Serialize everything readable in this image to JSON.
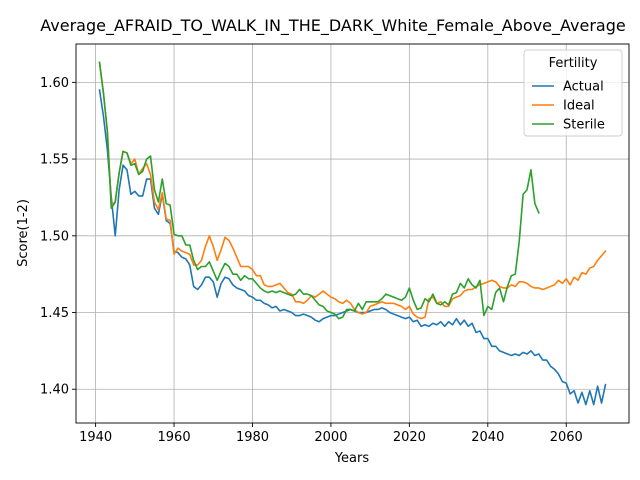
{
  "chart_data": {
    "type": "line",
    "title": "Average_AFRAID_TO_WALK_IN_THE_DARK_White_Female_Above_Average",
    "xlabel": "Years",
    "ylabel": "Score(1-2)",
    "xlim": [
      1935,
      2076
    ],
    "ylim": [
      1.378,
      1.625
    ],
    "xticks": [
      1940,
      1960,
      1980,
      2000,
      2020,
      2040,
      2060
    ],
    "yticks": [
      1.4,
      1.45,
      1.5,
      1.55,
      1.6
    ],
    "xtick_labels": [
      "1940",
      "1960",
      "1980",
      "2000",
      "2020",
      "2040",
      "2060"
    ],
    "ytick_labels": [
      "1.40",
      "1.45",
      "1.50",
      "1.55",
      "1.60"
    ],
    "grid": true,
    "legend": {
      "title": "Fertility",
      "placement": "top-right"
    },
    "series": [
      {
        "name": "Actual",
        "color": "#1f77b4",
        "x": [
          1941,
          1942,
          1943,
          1944,
          1945,
          1946,
          1947,
          1948,
          1949,
          1950,
          1951,
          1952,
          1953,
          1954,
          1955,
          1956,
          1957,
          1958,
          1959,
          1960,
          1961,
          1962,
          1963,
          1964,
          1965,
          1966,
          1967,
          1968,
          1969,
          1970,
          1971,
          1972,
          1973,
          1974,
          1975,
          1976,
          1977,
          1978,
          1979,
          1980,
          1981,
          1982,
          1983,
          1984,
          1985,
          1986,
          1987,
          1988,
          1989,
          1990,
          1991,
          1992,
          1993,
          1994,
          1995,
          1996,
          1997,
          1998,
          1999,
          2000,
          2001,
          2002,
          2003,
          2004,
          2005,
          2006,
          2007,
          2008,
          2009,
          2010,
          2011,
          2012,
          2013,
          2014,
          2015,
          2016,
          2017,
          2018,
          2019,
          2020,
          2021,
          2022,
          2023,
          2024,
          2025,
          2026,
          2027,
          2028,
          2029,
          2030,
          2031,
          2032,
          2033,
          2034,
          2035,
          2036,
          2037,
          2038,
          2039,
          2040,
          2041,
          2042,
          2043,
          2044,
          2045,
          2046,
          2047,
          2048,
          2049,
          2050,
          2051,
          2052,
          2053,
          2054,
          2055,
          2056,
          2057,
          2058,
          2059,
          2060,
          2061,
          2062,
          2063,
          2064,
          2065,
          2066,
          2067,
          2068,
          2069,
          2070
        ],
        "values": [
          1.595,
          1.578,
          1.556,
          1.525,
          1.5,
          1.53,
          1.546,
          1.543,
          1.527,
          1.529,
          1.526,
          1.526,
          1.537,
          1.537,
          1.518,
          1.514,
          1.527,
          1.51,
          1.508,
          1.49,
          1.489,
          1.486,
          1.485,
          1.481,
          1.467,
          1.465,
          1.468,
          1.473,
          1.473,
          1.47,
          1.46,
          1.469,
          1.473,
          1.472,
          1.468,
          1.466,
          1.465,
          1.464,
          1.461,
          1.46,
          1.458,
          1.458,
          1.456,
          1.455,
          1.453,
          1.454,
          1.451,
          1.452,
          1.451,
          1.45,
          1.448,
          1.448,
          1.449,
          1.448,
          1.447,
          1.445,
          1.444,
          1.446,
          1.447,
          1.448,
          1.448,
          1.449,
          1.45,
          1.451,
          1.452,
          1.451,
          1.45,
          1.45,
          1.45,
          1.451,
          1.452,
          1.452,
          1.453,
          1.452,
          1.45,
          1.449,
          1.448,
          1.447,
          1.446,
          1.447,
          1.444,
          1.445,
          1.441,
          1.442,
          1.441,
          1.443,
          1.442,
          1.444,
          1.441,
          1.444,
          1.442,
          1.446,
          1.442,
          1.445,
          1.441,
          1.443,
          1.437,
          1.438,
          1.433,
          1.433,
          1.428,
          1.428,
          1.425,
          1.424,
          1.423,
          1.422,
          1.423,
          1.422,
          1.424,
          1.423,
          1.425,
          1.422,
          1.423,
          1.419,
          1.419,
          1.415,
          1.413,
          1.41,
          1.405,
          1.404,
          1.397,
          1.399,
          1.391,
          1.398,
          1.39,
          1.399,
          1.39,
          1.402,
          1.391,
          1.403
        ]
      },
      {
        "name": "Ideal",
        "color": "#ff7f0e",
        "x": [
          1941,
          1942,
          1943,
          1944,
          1945,
          1946,
          1947,
          1948,
          1949,
          1950,
          1951,
          1952,
          1953,
          1954,
          1955,
          1956,
          1957,
          1958,
          1959,
          1960,
          1961,
          1962,
          1963,
          1964,
          1965,
          1966,
          1967,
          1968,
          1969,
          1970,
          1971,
          1972,
          1973,
          1974,
          1975,
          1976,
          1977,
          1978,
          1979,
          1980,
          1981,
          1982,
          1983,
          1984,
          1985,
          1986,
          1987,
          1988,
          1989,
          1990,
          1991,
          1992,
          1993,
          1994,
          1995,
          1996,
          1997,
          1998,
          1999,
          2000,
          2001,
          2002,
          2003,
          2004,
          2005,
          2006,
          2007,
          2008,
          2009,
          2010,
          2011,
          2012,
          2013,
          2014,
          2015,
          2016,
          2017,
          2018,
          2019,
          2020,
          2021,
          2022,
          2023,
          2024,
          2025,
          2026,
          2027,
          2028,
          2029,
          2030,
          2031,
          2032,
          2033,
          2034,
          2035,
          2036,
          2037,
          2038,
          2039,
          2040,
          2041,
          2042,
          2043,
          2044,
          2045,
          2046,
          2047,
          2048,
          2049,
          2050,
          2051,
          2052,
          2053,
          2054,
          2055,
          2056,
          2057,
          2058,
          2059,
          2060,
          2061,
          2062,
          2063,
          2064,
          2065,
          2066,
          2067,
          2068,
          2069,
          2070
        ],
        "values": [
          1.613,
          1.593,
          1.568,
          1.52,
          1.522,
          1.541,
          1.555,
          1.554,
          1.547,
          1.55,
          1.54,
          1.544,
          1.547,
          1.54,
          1.522,
          1.517,
          1.528,
          1.511,
          1.51,
          1.488,
          1.492,
          1.49,
          1.489,
          1.488,
          1.481,
          1.481,
          1.484,
          1.493,
          1.5,
          1.493,
          1.484,
          1.491,
          1.499,
          1.497,
          1.492,
          1.486,
          1.48,
          1.48,
          1.48,
          1.478,
          1.474,
          1.474,
          1.468,
          1.467,
          1.467,
          1.468,
          1.469,
          1.466,
          1.463,
          1.462,
          1.457,
          1.457,
          1.456,
          1.458,
          1.461,
          1.46,
          1.462,
          1.464,
          1.462,
          1.46,
          1.459,
          1.457,
          1.456,
          1.458,
          1.456,
          1.452,
          1.45,
          1.449,
          1.45,
          1.454,
          1.455,
          1.456,
          1.457,
          1.456,
          1.456,
          1.456,
          1.455,
          1.454,
          1.452,
          1.454,
          1.449,
          1.447,
          1.446,
          1.447,
          1.459,
          1.46,
          1.456,
          1.457,
          1.454,
          1.454,
          1.459,
          1.46,
          1.461,
          1.464,
          1.465,
          1.465,
          1.467,
          1.468,
          1.469,
          1.47,
          1.471,
          1.47,
          1.467,
          1.466,
          1.466,
          1.468,
          1.467,
          1.47,
          1.47,
          1.469,
          1.467,
          1.466,
          1.466,
          1.465,
          1.466,
          1.467,
          1.468,
          1.471,
          1.469,
          1.472,
          1.468,
          1.473,
          1.471,
          1.476,
          1.475,
          1.479,
          1.48,
          1.484,
          1.487,
          1.49
        ]
      },
      {
        "name": "Sterile",
        "color": "#2ca02c",
        "x": [
          1941,
          1942,
          1943,
          1944,
          1945,
          1946,
          1947,
          1948,
          1949,
          1950,
          1951,
          1952,
          1953,
          1954,
          1955,
          1956,
          1957,
          1958,
          1959,
          1960,
          1961,
          1962,
          1963,
          1964,
          1965,
          1966,
          1967,
          1968,
          1969,
          1970,
          1971,
          1972,
          1973,
          1974,
          1975,
          1976,
          1977,
          1978,
          1979,
          1980,
          1981,
          1982,
          1983,
          1984,
          1985,
          1986,
          1987,
          1988,
          1989,
          1990,
          1991,
          1992,
          1993,
          1994,
          1995,
          1996,
          1997,
          1998,
          1999,
          2000,
          2001,
          2002,
          2003,
          2004,
          2005,
          2006,
          2007,
          2008,
          2009,
          2010,
          2011,
          2012,
          2013,
          2014,
          2015,
          2016,
          2017,
          2018,
          2019,
          2020,
          2021,
          2022,
          2023,
          2024,
          2025,
          2026,
          2027,
          2028,
          2029,
          2030,
          2031,
          2032,
          2033,
          2034,
          2035,
          2036,
          2037,
          2038,
          2039,
          2040,
          2041,
          2042,
          2043,
          2044,
          2045,
          2046,
          2047,
          2048,
          2049,
          2050,
          2051,
          2052,
          2053
        ],
        "values": [
          1.613,
          1.593,
          1.568,
          1.518,
          1.522,
          1.541,
          1.555,
          1.554,
          1.546,
          1.547,
          1.54,
          1.542,
          1.55,
          1.552,
          1.53,
          1.522,
          1.537,
          1.521,
          1.52,
          1.501,
          1.5,
          1.5,
          1.494,
          1.494,
          1.484,
          1.478,
          1.48,
          1.48,
          1.483,
          1.477,
          1.471,
          1.477,
          1.482,
          1.48,
          1.475,
          1.475,
          1.471,
          1.474,
          1.472,
          1.472,
          1.469,
          1.466,
          1.464,
          1.463,
          1.464,
          1.463,
          1.464,
          1.463,
          1.462,
          1.461,
          1.462,
          1.465,
          1.462,
          1.462,
          1.461,
          1.458,
          1.455,
          1.454,
          1.451,
          1.45,
          1.449,
          1.446,
          1.447,
          1.452,
          1.452,
          1.451,
          1.456,
          1.452,
          1.457,
          1.457,
          1.457,
          1.457,
          1.459,
          1.462,
          1.461,
          1.46,
          1.459,
          1.458,
          1.46,
          1.466,
          1.458,
          1.452,
          1.453,
          1.459,
          1.457,
          1.462,
          1.456,
          1.455,
          1.457,
          1.455,
          1.462,
          1.463,
          1.469,
          1.466,
          1.472,
          1.468,
          1.466,
          1.471,
          1.448,
          1.454,
          1.452,
          1.463,
          1.466,
          1.457,
          1.467,
          1.474,
          1.475,
          1.496,
          1.527,
          1.53,
          1.543,
          1.521,
          1.515
        ]
      }
    ]
  }
}
